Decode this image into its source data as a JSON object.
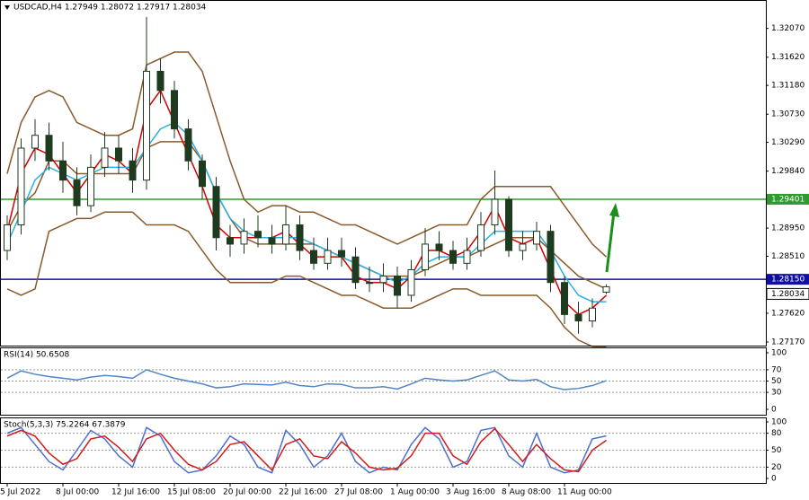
{
  "chart_data": [
    {
      "type": "candlestick",
      "title": "USDCAD,H4  1.27949 1.28072 1.27917 1.28034",
      "categories": [
        "5 Jul 2022",
        null,
        null,
        null,
        "8 Jul 00:00",
        null,
        null,
        null,
        "12 Jul 16:00",
        null,
        null,
        null,
        "15 Jul 08:00",
        null,
        null,
        null,
        "20 Jul 00:00",
        null,
        null,
        null,
        "22 Jul 16:00",
        null,
        null,
        null,
        "27 Jul 08:00",
        null,
        null,
        null,
        "1 Aug 00:00",
        null,
        null,
        null,
        "3 Aug 16:00",
        null,
        null,
        null,
        "8 Aug 08:00",
        null,
        null,
        null,
        "11 Aug 00:00",
        null,
        null,
        null
      ],
      "open": [
        1.286,
        1.29,
        1.302,
        1.304,
        1.3,
        1.297,
        1.293,
        1.299,
        1.302,
        1.3,
        1.297,
        1.314,
        1.311,
        1.305,
        1.3,
        1.296,
        1.288,
        1.287,
        1.289,
        1.288,
        1.287,
        1.29,
        1.286,
        1.284,
        1.286,
        1.285,
        1.281,
        1.281,
        1.282,
        1.279,
        1.283,
        1.287,
        1.286,
        1.284,
        1.286,
        1.29,
        1.294,
        1.286,
        1.287,
        1.289,
        1.281,
        1.276,
        1.275,
        1.27949
      ],
      "high": [
        1.2915,
        1.3035,
        1.3065,
        1.306,
        1.303,
        1.299,
        1.301,
        1.3045,
        1.304,
        1.302,
        1.3225,
        1.316,
        1.3125,
        1.3065,
        1.301,
        1.2975,
        1.29,
        1.291,
        1.2915,
        1.29,
        1.293,
        1.2915,
        1.288,
        1.288,
        1.288,
        1.2865,
        1.2835,
        1.284,
        1.2835,
        1.2845,
        1.2895,
        1.289,
        1.2875,
        1.288,
        1.292,
        1.2985,
        1.2945,
        1.289,
        1.2905,
        1.29,
        1.282,
        1.278,
        1.2785,
        1.28072
      ],
      "low": [
        1.2845,
        1.2885,
        1.3,
        1.2985,
        1.295,
        1.2915,
        1.292,
        1.2975,
        1.298,
        1.295,
        1.2955,
        1.309,
        1.3035,
        1.2985,
        1.294,
        1.286,
        1.285,
        1.2855,
        1.2865,
        1.2855,
        1.286,
        1.2845,
        1.283,
        1.283,
        1.2835,
        1.28,
        1.2795,
        1.2795,
        1.277,
        1.278,
        1.282,
        1.2845,
        1.283,
        1.283,
        1.285,
        1.2885,
        1.285,
        1.2845,
        1.286,
        1.2795,
        1.2745,
        1.273,
        1.274,
        1.27917
      ],
      "close": [
        1.29,
        1.302,
        1.304,
        1.3,
        1.297,
        1.293,
        1.299,
        1.302,
        1.3,
        1.297,
        1.314,
        1.311,
        1.305,
        1.3,
        1.296,
        1.288,
        1.287,
        1.289,
        1.288,
        1.287,
        1.29,
        1.286,
        1.284,
        1.286,
        1.285,
        1.281,
        1.281,
        1.282,
        1.279,
        1.283,
        1.287,
        1.286,
        1.284,
        1.286,
        1.29,
        1.294,
        1.286,
        1.287,
        1.289,
        1.281,
        1.276,
        1.275,
        1.277,
        1.28034
      ],
      "candle_color": "#1f3b1f",
      "series": [
        {
          "color": "#8b5a2b",
          "values": [
            1.298,
            1.306,
            1.31,
            1.311,
            1.31,
            1.306,
            1.305,
            1.304,
            1.304,
            1.305,
            1.315,
            1.316,
            1.317,
            1.317,
            1.314,
            1.307,
            1.3,
            1.294,
            1.292,
            1.293,
            1.293,
            1.292,
            1.292,
            1.291,
            1.29,
            1.29,
            1.289,
            1.288,
            1.287,
            1.288,
            1.289,
            1.29,
            1.29,
            1.29,
            1.294,
            1.296,
            1.296,
            1.296,
            1.296,
            1.296,
            1.293,
            1.29,
            1.287,
            1.285
          ]
        },
        {
          "color": "#8b5a2b",
          "values": [
            1.289,
            1.293,
            1.295,
            1.3,
            1.3,
            1.298,
            1.298,
            1.298,
            1.298,
            1.298,
            1.302,
            1.303,
            1.303,
            1.303,
            1.3,
            1.295,
            1.291,
            1.288,
            1.287,
            1.287,
            1.287,
            1.287,
            1.287,
            1.286,
            1.285,
            1.284,
            1.283,
            1.282,
            1.282,
            1.282,
            1.283,
            1.284,
            1.285,
            1.285,
            1.286,
            1.287,
            1.288,
            1.288,
            1.288,
            1.286,
            1.284,
            1.282,
            1.281,
            1.28
          ]
        },
        {
          "color": "#8b5a2b",
          "values": [
            1.28,
            1.279,
            1.28,
            1.289,
            1.29,
            1.291,
            1.291,
            1.292,
            1.292,
            1.292,
            1.29,
            1.29,
            1.29,
            1.289,
            1.286,
            1.283,
            1.281,
            1.281,
            1.281,
            1.281,
            1.282,
            1.282,
            1.281,
            1.28,
            1.279,
            1.279,
            1.278,
            1.277,
            1.277,
            1.277,
            1.278,
            1.279,
            1.28,
            1.28,
            1.279,
            1.279,
            1.279,
            1.279,
            1.279,
            1.277,
            1.274,
            1.272,
            1.271,
            1.271
          ]
        },
        {
          "color": "#d40000",
          "values": [
            1.289,
            1.298,
            1.302,
            1.301,
            1.298,
            1.295,
            1.298,
            1.301,
            1.3,
            1.298,
            1.308,
            1.311,
            1.306,
            1.301,
            1.296,
            1.29,
            1.288,
            1.288,
            1.288,
            1.288,
            1.289,
            1.287,
            1.285,
            1.285,
            1.285,
            1.282,
            1.281,
            1.281,
            1.28,
            1.282,
            1.286,
            1.286,
            1.285,
            1.286,
            1.289,
            1.293,
            1.288,
            1.287,
            1.288,
            1.283,
            1.278,
            1.276,
            1.277,
            1.279
          ]
        },
        {
          "color": "#2ab0e0",
          "values": [
            1.287,
            1.292,
            1.297,
            1.299,
            1.298,
            1.297,
            1.298,
            1.299,
            1.299,
            1.299,
            1.302,
            1.305,
            1.306,
            1.304,
            1.3,
            1.295,
            1.291,
            1.289,
            1.288,
            1.288,
            1.288,
            1.288,
            1.287,
            1.286,
            1.285,
            1.284,
            1.283,
            1.282,
            1.281,
            1.282,
            1.284,
            1.285,
            1.285,
            1.285,
            1.287,
            1.289,
            1.289,
            1.289,
            1.289,
            1.286,
            1.282,
            1.279,
            1.278,
            1.278
          ]
        }
      ],
      "lines": [
        {
          "value": 1.29401,
          "color": "#2e9b2e"
        },
        {
          "value": 1.2815,
          "label": "1.28150",
          "color": "#1010a0"
        }
      ],
      "last_price": 1.28034,
      "ylim": [
        1.271,
        1.325
      ],
      "yticks": [
        {
          "value": 1.3207,
          "label": "1.32070"
        },
        {
          "value": 1.3162,
          "label": "1.31620"
        },
        {
          "value": 1.3118,
          "label": "1.31180"
        },
        {
          "value": 1.3073,
          "label": "1.30730"
        },
        {
          "value": 1.3029,
          "label": "1.30290"
        },
        {
          "value": 1.2984,
          "label": "1.29840"
        },
        {
          "value": 1.2895,
          "label": "1.28950"
        },
        {
          "value": 1.2851,
          "label": "1.28510"
        },
        {
          "value": 1.2762,
          "label": "1.27620"
        },
        {
          "value": 1.2717,
          "label": "1.27170"
        }
      ]
    },
    {
      "type": "line",
      "title": "RSI(14) 50.6508",
      "series": [
        {
          "color": "#4f86c6",
          "values": [
            55,
            68,
            62,
            58,
            55,
            52,
            57,
            60,
            58,
            55,
            70,
            62,
            55,
            50,
            45,
            38,
            40,
            45,
            44,
            43,
            48,
            42,
            40,
            45,
            44,
            38,
            38,
            40,
            36,
            45,
            55,
            52,
            50,
            52,
            60,
            68,
            52,
            50,
            53,
            40,
            35,
            37,
            42,
            50.6508
          ]
        }
      ],
      "ylim": [
        0,
        100
      ],
      "yticks": [
        0,
        30,
        50,
        70,
        100
      ],
      "level_lines": [
        30,
        50,
        70
      ]
    },
    {
      "type": "line",
      "title": "Stoch(5,3,3) 75.2264 67.3879",
      "series": [
        {
          "color": "#4f6fd0",
          "values": [
            80,
            90,
            60,
            30,
            15,
            50,
            85,
            70,
            40,
            20,
            90,
            75,
            30,
            10,
            15,
            40,
            75,
            60,
            20,
            10,
            85,
            60,
            20,
            40,
            80,
            30,
            10,
            20,
            15,
            60,
            90,
            70,
            20,
            30,
            85,
            90,
            40,
            20,
            80,
            20,
            10,
            15,
            70,
            75.2264
          ]
        },
        {
          "color": "#d41a1a",
          "values": [
            75,
            85,
            75,
            45,
            25,
            35,
            70,
            75,
            55,
            30,
            70,
            80,
            50,
            25,
            15,
            30,
            60,
            65,
            40,
            15,
            60,
            70,
            40,
            35,
            65,
            45,
            20,
            15,
            18,
            40,
            80,
            80,
            40,
            25,
            65,
            88,
            60,
            30,
            60,
            35,
            15,
            12,
            50,
            67.3879
          ]
        }
      ],
      "ylim": [
        0,
        100
      ],
      "yticks": [
        0,
        20,
        50,
        80,
        100
      ],
      "level_lines": [
        20,
        50,
        80
      ]
    }
  ]
}
